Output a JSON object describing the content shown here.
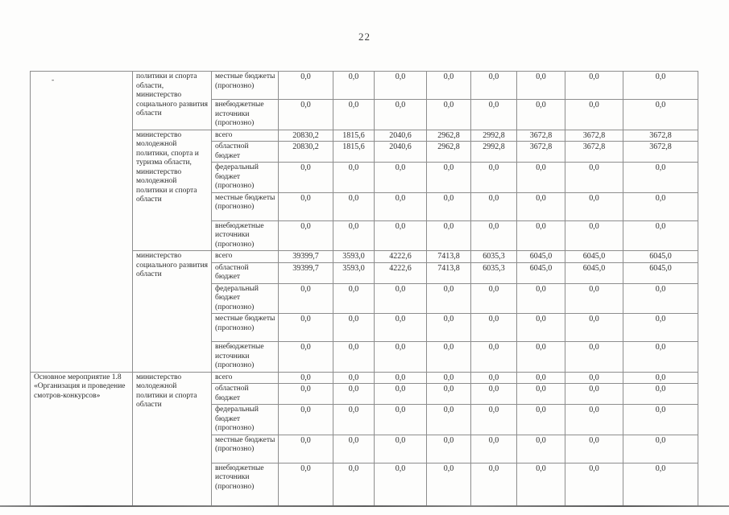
{
  "page": {
    "number": "22"
  },
  "budget_table": {
    "sections": [
      {
        "activity": "-",
        "ministries": [
          {
            "name": "политики и спорта области, министерство социального развития области",
            "rows": [
              {
                "label": "местные бюджеты (прогнозно)",
                "values": [
                  "0,0",
                  "0,0",
                  "0,0",
                  "0,0",
                  "0,0",
                  "0,0",
                  "0,0",
                  "0,0"
                ]
              },
              {
                "label": "внебюджетные источники (прогнозно)",
                "values": [
                  "0,0",
                  "0,0",
                  "0,0",
                  "0,0",
                  "0,0",
                  "0,0",
                  "0,0",
                  "0,0"
                ]
              }
            ]
          },
          {
            "name": "министерство молодежной политики, спорта и туризма области, министерство молодежной политики и спорта области",
            "rows": [
              {
                "label": "всего",
                "values": [
                  "20830,2",
                  "1815,6",
                  "2040,6",
                  "2962,8",
                  "2992,8",
                  "3672,8",
                  "3672,8",
                  "3672,8"
                ]
              },
              {
                "label": "областной бюджет",
                "values": [
                  "20830,2",
                  "1815,6",
                  "2040,6",
                  "2962,8",
                  "2992,8",
                  "3672,8",
                  "3672,8",
                  "3672,8"
                ]
              },
              {
                "label": "федеральный бюджет (прогнозно)",
                "values": [
                  "0,0",
                  "0,0",
                  "0,0",
                  "0,0",
                  "0,0",
                  "0,0",
                  "0,0",
                  "0,0"
                ]
              },
              {
                "label": "местные бюджеты (прогнозно)",
                "values": [
                  "0,0",
                  "0,0",
                  "0,0",
                  "0,0",
                  "0,0",
                  "0,0",
                  "0,0",
                  "0,0"
                ]
              },
              {
                "label": "внебюджетные источники (прогнозно)",
                "values": [
                  "0,0",
                  "0,0",
                  "0,0",
                  "0,0",
                  "0,0",
                  "0,0",
                  "0,0",
                  "0,0"
                ]
              }
            ]
          },
          {
            "name": "министерство социального развития области",
            "rows": [
              {
                "label": "всего",
                "values": [
                  "39399,7",
                  "3593,0",
                  "4222,6",
                  "7413,8",
                  "6035,3",
                  "6045,0",
                  "6045,0",
                  "6045,0"
                ]
              },
              {
                "label": "областной бюджет",
                "values": [
                  "39399,7",
                  "3593,0",
                  "4222,6",
                  "7413,8",
                  "6035,3",
                  "6045,0",
                  "6045,0",
                  "6045,0"
                ]
              },
              {
                "label": "федеральный бюджет (прогнозно)",
                "values": [
                  "0,0",
                  "0,0",
                  "0,0",
                  "0,0",
                  "0,0",
                  "0,0",
                  "0,0",
                  "0,0"
                ]
              },
              {
                "label": "местные бюджеты (прогнозно)",
                "values": [
                  "0,0",
                  "0,0",
                  "0,0",
                  "0,0",
                  "0,0",
                  "0,0",
                  "0,0",
                  "0,0"
                ]
              },
              {
                "label": "внебюджетные источники (прогнозно)",
                "values": [
                  "0,0",
                  "0,0",
                  "0,0",
                  "0,0",
                  "0,0",
                  "0,0",
                  "0,0",
                  "0,0"
                ]
              }
            ]
          }
        ]
      },
      {
        "activity": "Основное мероприятие 1.8 «Организация и проведение смотров-конкурсов»",
        "ministries": [
          {
            "name": "министерство молодежной политики и спорта области",
            "rows": [
              {
                "label": "всего",
                "values": [
                  "0,0",
                  "0,0",
                  "0,0",
                  "0,0",
                  "0,0",
                  "0,0",
                  "0,0",
                  "0,0"
                ]
              },
              {
                "label": "областной бюджет",
                "values": [
                  "0,0",
                  "0,0",
                  "0,0",
                  "0,0",
                  "0,0",
                  "0,0",
                  "0,0",
                  "0,0"
                ]
              },
              {
                "label": "федеральный бюджет (прогнозно)",
                "values": [
                  "0,0",
                  "0,0",
                  "0,0",
                  "0,0",
                  "0,0",
                  "0,0",
                  "0,0",
                  "0,0"
                ]
              },
              {
                "label": "местные бюджеты (прогнозно)",
                "values": [
                  "0,0",
                  "0,0",
                  "0,0",
                  "0,0",
                  "0,0",
                  "0,0",
                  "0,0",
                  "0,0"
                ]
              },
              {
                "label": "внебюджетные источники (прогнозно)",
                "values": [
                  "0,0",
                  "0,0",
                  "0,0",
                  "0,0",
                  "0,0",
                  "0,0",
                  "0,0",
                  "0,0"
                ]
              }
            ]
          }
        ]
      }
    ]
  }
}
